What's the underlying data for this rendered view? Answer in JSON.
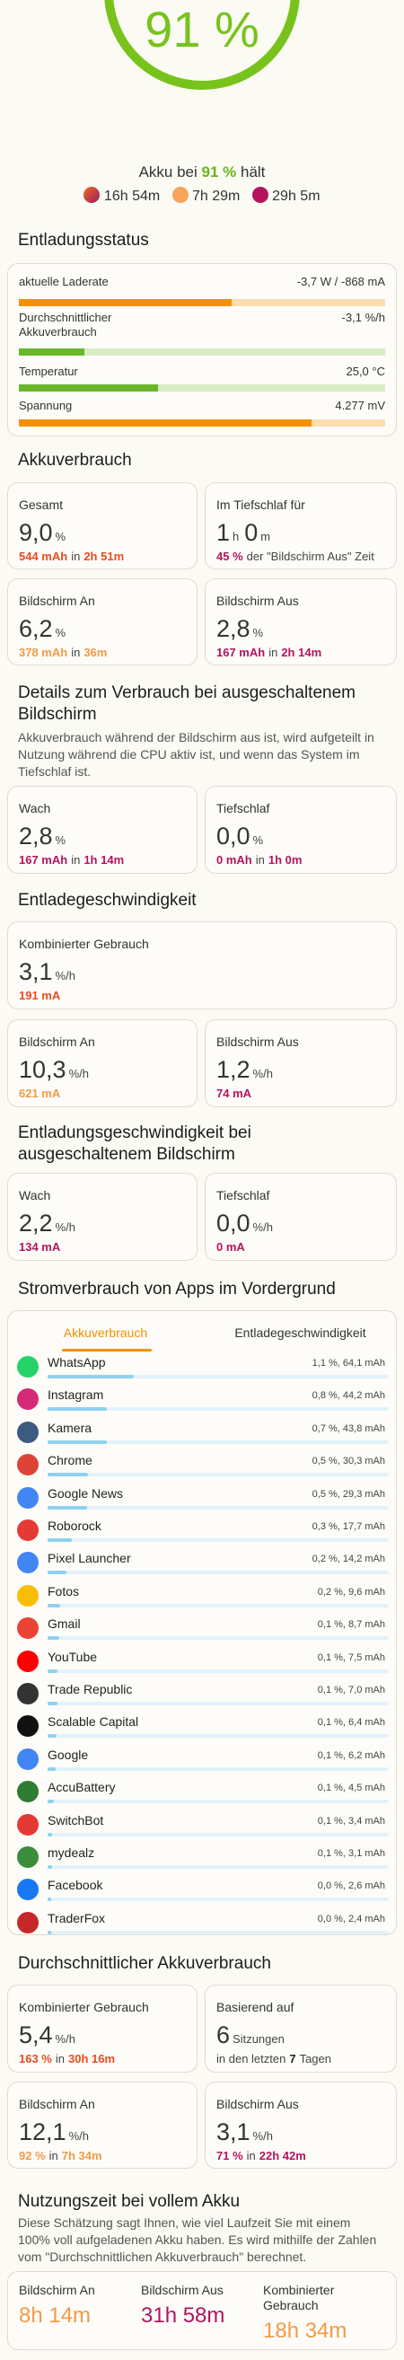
{
  "header": {
    "percent": "91 %",
    "status": [
      "Akku bei",
      "91 %",
      "hält"
    ],
    "times": [
      "16h 54m",
      "7h 29m",
      "29h 5m"
    ]
  },
  "discharge_status": {
    "title": "Entladungsstatus",
    "rows": [
      {
        "label": "aktuelle Laderate",
        "value": "-3,7 W / -868 mA"
      },
      {
        "label": "Durchschnittlicher Akkuverbrauch",
        "value": "-3,1 %/h"
      },
      {
        "label": "Temperatur",
        "value": "25,0 °C"
      },
      {
        "label": "Spannung",
        "value": "4.277 mV"
      }
    ]
  },
  "sections": [
    {
      "title": "Akkuverbrauch",
      "cards": [
        {
          "label": "Gesamt",
          "main": [
            "9,0",
            "%"
          ],
          "detail": [
            {
              "text": "544 mAh",
              "color": "#ea4b1f"
            },
            "in",
            {
              "text": "2h 51m",
              "color": "#ea4b1f"
            }
          ]
        },
        {
          "label": "Im Tiefschlaf für",
          "main": [
            "1",
            "h",
            "0",
            "m"
          ],
          "detail": [
            {
              "text": "45 %",
              "color": "#b3145e"
            },
            "der \"Bildschirm Aus\" Zeit"
          ]
        },
        {
          "label": "Bildschirm An",
          "main": [
            "6,2",
            "%"
          ],
          "detail": [
            {
              "text": "378 mAh",
              "color": "#f39a47"
            },
            "in",
            {
              "text": "36m",
              "color": "#f39a47"
            }
          ]
        },
        {
          "label": "Bildschirm Aus",
          "main": [
            "2,8",
            "%"
          ],
          "detail": [
            {
              "text": "167 mAh",
              "color": "#b3145e"
            },
            "in",
            {
              "text": "2h 14m",
              "color": "#b3145e"
            }
          ]
        }
      ]
    },
    {
      "title": "Details zum Verbrauch bei ausgeschaltenem Bildschirm",
      "description": "Akkuverbrauch während der Bildschirm aus ist, wird aufgeteilt in Nutzung während die CPU aktiv ist, und wenn das System im Tiefschlaf ist.",
      "cards": [
        {
          "label": "Wach",
          "main": [
            "2,8",
            "%"
          ],
          "detail": [
            {
              "text": "167 mAh",
              "color": "#b3145e"
            },
            "in",
            {
              "text": "1h 14m",
              "color": "#b3145e"
            }
          ]
        },
        {
          "label": "Tiefschlaf",
          "main": [
            "0,0",
            "%"
          ],
          "detail": [
            {
              "text": "0 mAh",
              "color": "#b3145e"
            },
            "in",
            {
              "text": "1h 0m",
              "color": "#b3145e"
            }
          ]
        }
      ]
    },
    {
      "title": "Entladegeschwindigkeit",
      "cards": [
        {
          "label": "Kombinierter Gebrauch",
          "main": [
            "3,1",
            "%/h"
          ],
          "detail": [
            {
              "text": "191 mA",
              "color": "#ea4b1f"
            }
          ]
        },
        {
          "label": "Bildschirm An",
          "main": [
            "10,3",
            "%/h"
          ],
          "detail": [
            {
              "text": "621 mA",
              "color": "#f39a47"
            }
          ]
        },
        {
          "label": "Bildschirm Aus",
          "main": [
            "1,2",
            "%/h"
          ],
          "detail": [
            {
              "text": "74 mA",
              "color": "#b3145e"
            }
          ]
        }
      ]
    },
    {
      "title": "Entladungsgeschwindigkeit bei ausgeschaltenem Bildschirm",
      "cards": [
        {
          "label": "Wach",
          "main": [
            "2,2",
            "%/h"
          ],
          "detail": [
            {
              "text": "134 mA",
              "color": "#b3145e"
            }
          ]
        },
        {
          "label": "Tiefschlaf",
          "main": [
            "0,0",
            "%/h"
          ],
          "detail": [
            {
              "text": "0 mA",
              "color": "#b3145e"
            }
          ]
        }
      ]
    },
    {
      "title": "Durchschnittlicher Akkuverbrauch",
      "cards": [
        {
          "label": "Kombinierter Gebrauch",
          "main": [
            "5,4",
            "%/h"
          ],
          "detail": [
            {
              "text": "163 %",
              "color": "#ea4b1f"
            },
            "in",
            {
              "text": "30h 16m",
              "color": "#ea4b1f"
            }
          ]
        },
        {
          "label": "Basierend auf",
          "main": [
            "6",
            "Sitzungen"
          ],
          "detail": [
            "in den letzten",
            {
              "text": "7",
              "color": "#222222"
            },
            "Tagen"
          ]
        },
        {
          "label": "Bildschirm An",
          "main": [
            "12,1",
            "%/h"
          ],
          "detail": [
            {
              "text": "92 %",
              "color": "#f39a47"
            },
            "in",
            {
              "text": "7h 34m",
              "color": "#f39a47"
            }
          ]
        },
        {
          "label": "Bildschirm Aus",
          "main": [
            "3,1",
            "%/h"
          ],
          "detail": [
            {
              "text": "71 %",
              "color": "#b3145e"
            },
            "in",
            {
              "text": "22h 42m",
              "color": "#b3145e"
            }
          ]
        }
      ]
    }
  ],
  "apps_section": {
    "title": "Stromverbrauch von Apps im Vordergrund",
    "tabs": [
      "Akkuverbrauch",
      "Entladegeschwindigkeit"
    ],
    "apps": [
      {
        "name": "WhatsApp",
        "value": 64.1,
        "value_label": "1,1 %, 64,1 mAh",
        "color": "#25d366"
      },
      {
        "name": "Instagram",
        "value": 44.2,
        "value_label": "0,8 %, 44,2 mAh",
        "color": "#d62976"
      },
      {
        "name": "Kamera",
        "value": 43.8,
        "value_label": "0,7 %, 43,8 mAh",
        "color": "#3d5a80"
      },
      {
        "name": "Chrome",
        "value": 30.3,
        "value_label": "0,5 %, 30,3 mAh",
        "color": "#db4437"
      },
      {
        "name": "Google News",
        "value": 29.3,
        "value_label": "0,5 %, 29,3 mAh",
        "color": "#4285f4"
      },
      {
        "name": "Roborock",
        "value": 17.7,
        "value_label": "0,3 %, 17,7 mAh",
        "color": "#e53935"
      },
      {
        "name": "Pixel Launcher",
        "value": 14.2,
        "value_label": "0,2 %, 14,2 mAh",
        "color": "#4285f4"
      },
      {
        "name": "Fotos",
        "value": 9.6,
        "value_label": "0,2 %, 9,6 mAh",
        "color": "#fbbc05"
      },
      {
        "name": "Gmail",
        "value": 8.7,
        "value_label": "0,1 %, 8,7 mAh",
        "color": "#ea4335"
      },
      {
        "name": "YouTube",
        "value": 7.5,
        "value_label": "0,1 %, 7,5 mAh",
        "color": "#ff0000"
      },
      {
        "name": "Trade Republic",
        "value": 7.0,
        "value_label": "0,1 %, 7,0 mAh",
        "color": "#333333"
      },
      {
        "name": "Scalable Capital",
        "value": 6.4,
        "value_label": "0,1 %, 6,4 mAh",
        "color": "#111111"
      },
      {
        "name": "Google",
        "value": 6.2,
        "value_label": "0,1 %, 6,2 mAh",
        "color": "#4285f4"
      },
      {
        "name": "AccuBattery",
        "value": 4.5,
        "value_label": "0,1 %, 4,5 mAh",
        "color": "#2e7d32"
      },
      {
        "name": "SwitchBot",
        "value": 3.4,
        "value_label": "0,1 %, 3,4 mAh",
        "color": "#e53935"
      },
      {
        "name": "mydealz",
        "value": 3.1,
        "value_label": "0,1 %, 3,1 mAh",
        "color": "#3b8d3b"
      },
      {
        "name": "Facebook",
        "value": 2.6,
        "value_label": "0,0 %, 2,6 mAh",
        "color": "#1877f2"
      },
      {
        "name": "TraderFox",
        "value": 2.4,
        "value_label": "0,0 %, 2,4 mAh",
        "color": "#c62828"
      }
    ]
  },
  "full_charge": {
    "title": "Nutzungszeit bei vollem Akku",
    "description": "Diese Schätzung sagt Ihnen, wie viel Laufzeit Sie mit einem 100% voll aufgeladenen Akku haben. Es wird mithilfe der Zahlen vom \"Durchschnittlichen Akkuverbrauch\" berechnet.",
    "items": [
      {
        "label": "Bildschirm An",
        "value": "8h 14m",
        "color": "#f39a47"
      },
      {
        "label": "Bildschirm Aus",
        "value": "31h 58m",
        "color": "#b3145e"
      },
      {
        "label": "Kombinierter Gebrauch",
        "value": "18h 34m",
        "color": "#f39a47"
      }
    ]
  }
}
